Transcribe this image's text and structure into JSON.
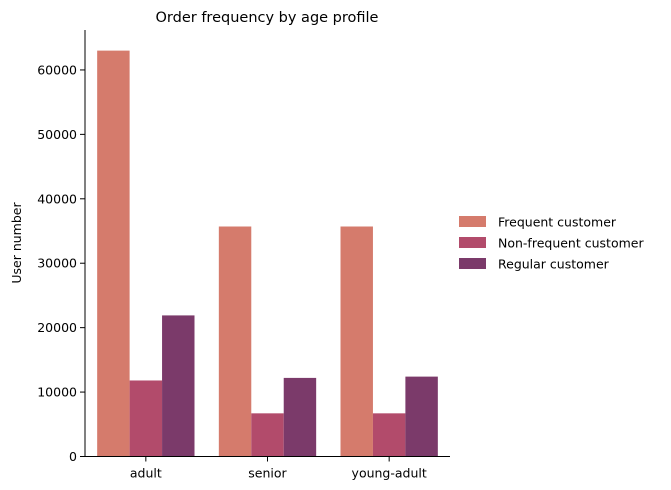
{
  "chart_data": {
    "type": "bar",
    "title": "Order frequency by age profile",
    "xlabel": "",
    "ylabel": "User number",
    "categories": [
      "adult",
      "senior",
      "young-adult"
    ],
    "series": [
      {
        "name": "Frequent customer",
        "color": "#d57b6c",
        "values": [
          63000,
          35700,
          35700
        ]
      },
      {
        "name": "Non-frequent customer",
        "color": "#b24b6b",
        "values": [
          11800,
          6700,
          6700
        ]
      },
      {
        "name": "Regular customer",
        "color": "#7b3a6a",
        "values": [
          21900,
          12200,
          12400
        ]
      }
    ],
    "ylim": [
      0,
      66200
    ],
    "yticks": [
      0,
      10000,
      20000,
      30000,
      40000,
      50000,
      60000
    ],
    "legend": {
      "placement": "right"
    },
    "grid": false
  }
}
